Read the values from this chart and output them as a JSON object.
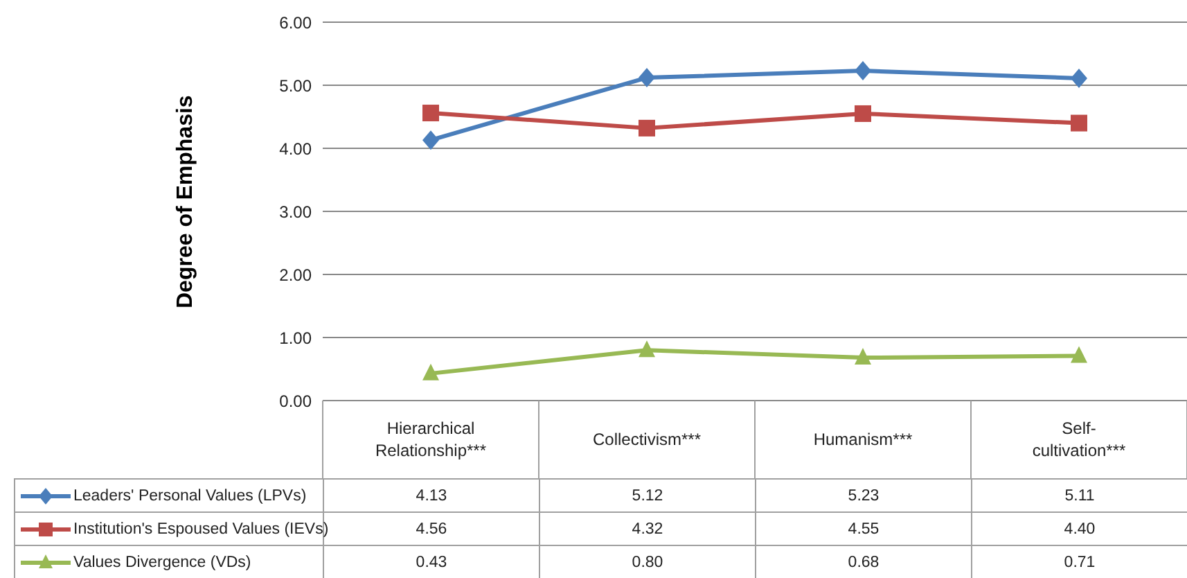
{
  "chart_data": {
    "type": "line",
    "ylabel": "Degree of Emphasis",
    "categories": [
      "Hierarchical Relationship***",
      "Collectivism***",
      "Humanism***",
      "Self-cultivation***"
    ],
    "series": [
      {
        "name": "Leaders' Personal Values (LPVs)",
        "color": "#4a7ebb",
        "marker": "diamond",
        "values": [
          4.13,
          5.12,
          5.23,
          5.11
        ],
        "value_labels": [
          "4.13",
          "5.12",
          "5.23",
          "5.11"
        ]
      },
      {
        "name": "Institution's Espoused Values (IEVs)",
        "color": "#be4b48",
        "marker": "square",
        "values": [
          4.56,
          4.32,
          4.55,
          4.4
        ],
        "value_labels": [
          "4.56",
          "4.32",
          "4.55",
          "4.40"
        ]
      },
      {
        "name": "Values Divergence (VDs)",
        "color": "#98b954",
        "marker": "triangle",
        "values": [
          0.43,
          0.8,
          0.68,
          0.71
        ],
        "value_labels": [
          "0.43",
          "0.80",
          "0.68",
          "0.71"
        ]
      }
    ],
    "ylim": [
      0,
      6
    ],
    "yticks": [
      {
        "value": 0,
        "label": "0.00"
      },
      {
        "value": 1,
        "label": "1.00"
      },
      {
        "value": 2,
        "label": "2.00"
      },
      {
        "value": 3,
        "label": "3.00"
      },
      {
        "value": 4,
        "label": "4.00"
      },
      {
        "value": 5,
        "label": "5.00"
      },
      {
        "value": 6,
        "label": "6.00"
      }
    ],
    "grid": "y",
    "legend": "bottom",
    "line_style": "solid"
  }
}
